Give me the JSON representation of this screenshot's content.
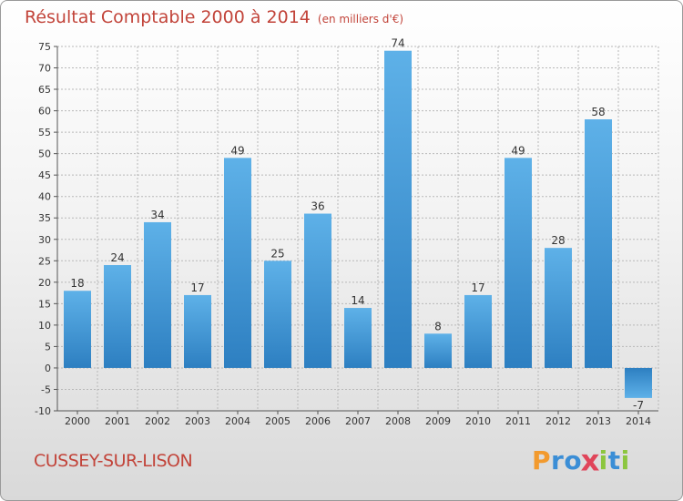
{
  "header": {
    "title": "Résultat Comptable 2000 à 2014",
    "subtitle": "(en milliers d'€)"
  },
  "commune": "CUSSEY-SUR-LISON",
  "brand": {
    "letters": [
      "P",
      "r",
      "o",
      "x",
      "i",
      "t",
      "i"
    ],
    "colors": [
      "#f29a2e",
      "#3b8ed6",
      "#3b8ed6",
      "#e0455a",
      "#8cc63f",
      "#3b8ed6",
      "#8cc63f"
    ]
  },
  "colors": {
    "bar_light": "#5eb1e8",
    "bar_dark": "#2d7fc1",
    "grid": "#b8b8b8",
    "title": "#c2443a"
  },
  "chart_data": {
    "type": "bar",
    "title": "Résultat Comptable 2000 à 2014",
    "subtitle": "(en milliers d'€)",
    "xlabel": "",
    "ylabel": "",
    "categories": [
      "2000",
      "2001",
      "2002",
      "2003",
      "2004",
      "2005",
      "2006",
      "2007",
      "2008",
      "2009",
      "2010",
      "2011",
      "2012",
      "2013",
      "2014"
    ],
    "values": [
      18,
      24,
      34,
      17,
      49,
      25,
      36,
      14,
      74,
      8,
      17,
      49,
      28,
      58,
      -7
    ],
    "ylim": [
      -10,
      75
    ],
    "yticks": [
      -10,
      -5,
      0,
      5,
      10,
      15,
      20,
      25,
      30,
      35,
      40,
      45,
      50,
      55,
      60,
      65,
      70,
      75
    ],
    "grid": true
  }
}
